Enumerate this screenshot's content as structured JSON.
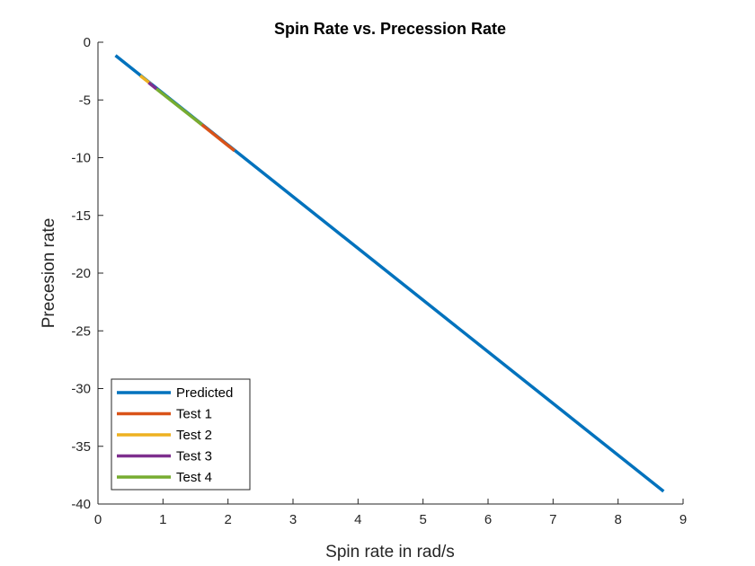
{
  "chart_data": {
    "type": "line",
    "title": "Spin Rate vs. Precession Rate",
    "xlabel": "Spin rate in rad/s",
    "ylabel": "Precesion rate",
    "xlim": [
      0,
      9
    ],
    "ylim": [
      -40,
      0
    ],
    "xticks": [
      "0",
      "1",
      "2",
      "3",
      "4",
      "5",
      "6",
      "7",
      "8",
      "9"
    ],
    "yticks": [
      "0",
      "-5",
      "-10",
      "-15",
      "-20",
      "-25",
      "-30",
      "-35",
      "-40"
    ],
    "xtick_values": [
      0,
      1,
      2,
      3,
      4,
      5,
      6,
      7,
      8,
      9
    ],
    "ytick_values": [
      0,
      -5,
      -10,
      -15,
      -20,
      -25,
      -30,
      -35,
      -40
    ],
    "grid": false,
    "legend_position": "bottom-left",
    "series": [
      {
        "name": "Predicted",
        "color": "#0072BD",
        "x": [
          0.27,
          8.7
        ],
        "y": [
          -1.15,
          -38.9
        ]
      },
      {
        "name": "Test 1",
        "color": "#D95319",
        "x": [
          1.5,
          2.1
        ],
        "y": [
          -6.7,
          -9.4
        ]
      },
      {
        "name": "Test 2",
        "color": "#EDB120",
        "x": [
          0.65,
          0.82
        ],
        "y": [
          -2.9,
          -3.65
        ]
      },
      {
        "name": "Test 3",
        "color": "#7E2F8E",
        "x": [
          0.78,
          0.9
        ],
        "y": [
          -3.5,
          -4.05
        ]
      },
      {
        "name": "Test 4",
        "color": "#77AC30",
        "x": [
          0.9,
          1.6
        ],
        "y": [
          -4.05,
          -7.15
        ]
      }
    ]
  }
}
